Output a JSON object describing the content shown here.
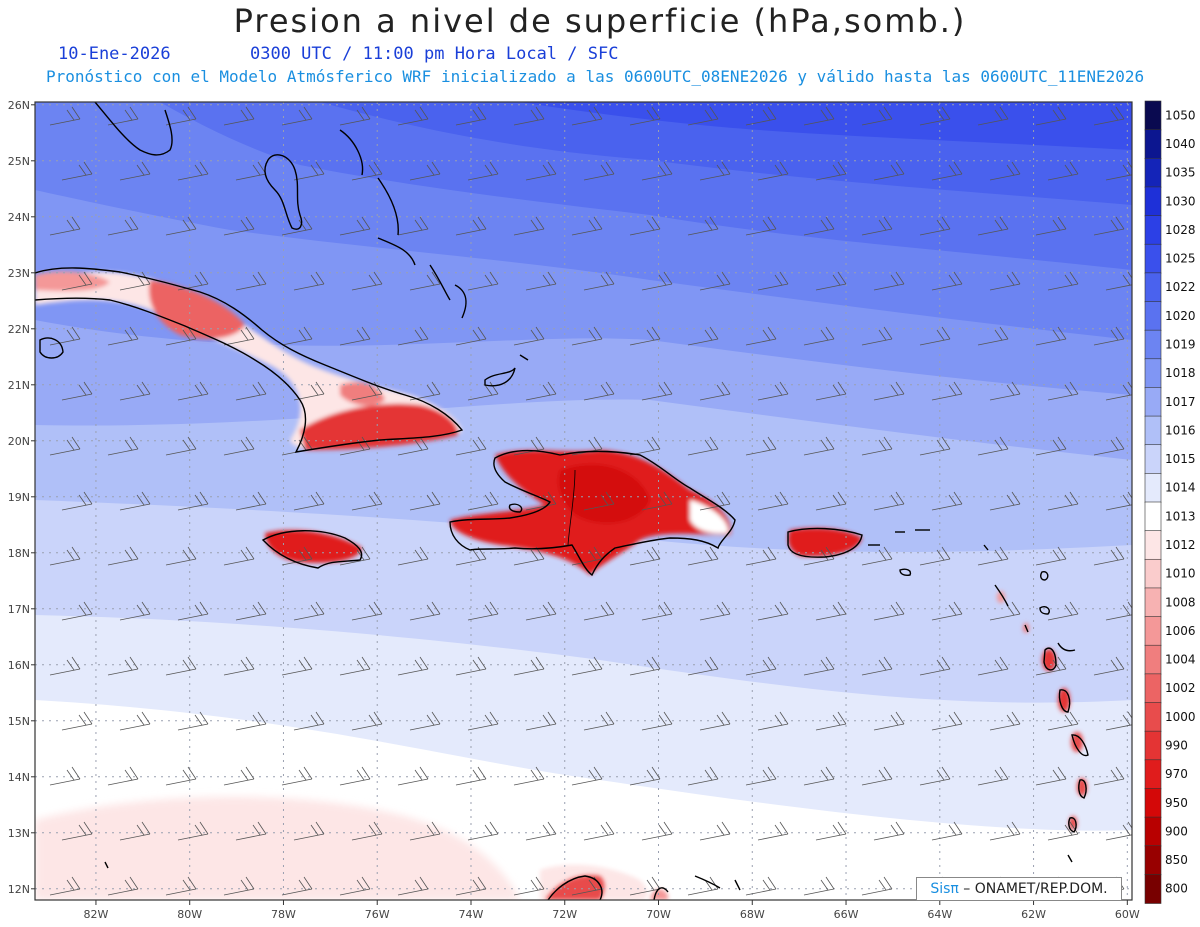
{
  "title": "Presion a nivel de superficie (hPa,somb.)",
  "subtitle": {
    "date": "10-Ene-2026",
    "time": "0300 UTC / 11:00 pm Hora Local / SFC",
    "model_line": "Pronóstico con el Modelo Atmósferico WRF inicializado a las 0600UTC_08ENE2026 y válido hasta las  0600UTC_11ENE2026"
  },
  "credit": {
    "brand": "Sisπ",
    "org": " – ONAMET/REP.DOM."
  },
  "map": {
    "lon_range": [
      -83.3,
      -59.9
    ],
    "lat_range": [
      11.8,
      26.05
    ],
    "lon_ticks": [
      "82W",
      "80W",
      "78W",
      "76W",
      "74W",
      "72W",
      "70W",
      "68W",
      "66W",
      "64W",
      "62W",
      "60W"
    ],
    "lat_ticks": [
      "12N",
      "13N",
      "14N",
      "15N",
      "16N",
      "17N",
      "18N",
      "19N",
      "20N",
      "21N",
      "22N",
      "23N",
      "24N",
      "25N",
      "26N"
    ]
  },
  "colorbar": {
    "labels": [
      "1050",
      "1040",
      "1035",
      "1030",
      "1028",
      "1025",
      "1022",
      "1020",
      "1019",
      "1018",
      "1017",
      "1016",
      "1015",
      "1014",
      "1013",
      "1012",
      "1010",
      "1008",
      "1006",
      "1004",
      "1002",
      "1000",
      "990",
      "970",
      "950",
      "900",
      "850",
      "800"
    ],
    "colors": [
      "#0a0a50",
      "#0c1690",
      "#1424b8",
      "#1e30d8",
      "#2c40e6",
      "#3a50ec",
      "#4a62ee",
      "#5a72f0",
      "#6c84f2",
      "#8096f4",
      "#98aaf6",
      "#b0c0f8",
      "#cad4fa",
      "#e4eafc",
      "#ffffff",
      "#fde6e6",
      "#facccc",
      "#f7b2b2",
      "#f49898",
      "#f07e7e",
      "#ec6464",
      "#e84c4c",
      "#e43434",
      "#e01c1c",
      "#d40808",
      "#b80000",
      "#980000",
      "#780000"
    ]
  }
}
